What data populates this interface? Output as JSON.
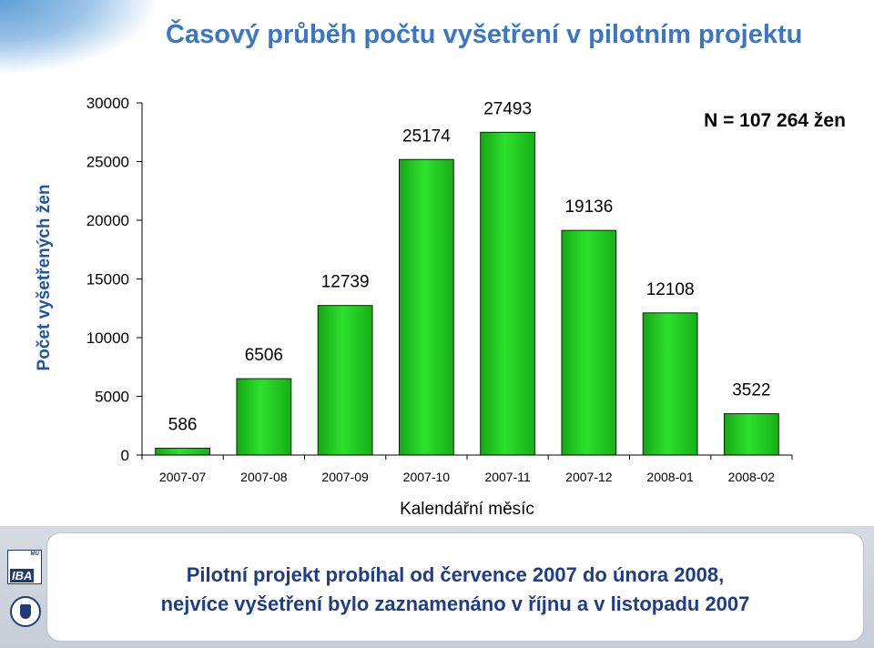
{
  "title": "Časový průběh počtu vyšetření v pilotním projektu",
  "chart_data": {
    "type": "bar",
    "categories": [
      "2007-07",
      "2007-08",
      "2007-09",
      "2007-10",
      "2007-11",
      "2007-12",
      "2008-01",
      "2008-02"
    ],
    "values": [
      586,
      6506,
      12739,
      25174,
      27493,
      19136,
      12108,
      3522
    ],
    "data_labels": [
      "586",
      "6506",
      "12739",
      "25174",
      "27493",
      "19136",
      "12108",
      "3522"
    ],
    "title": "",
    "xlabel": "Kalendářní měsíc",
    "ylabel": "Počet vyšetřených žen",
    "ylim": [
      0,
      30000
    ],
    "yticks": [
      0,
      5000,
      10000,
      15000,
      20000,
      25000,
      30000
    ],
    "ytick_labels": [
      "0",
      "5000",
      "10000",
      "15000",
      "20000",
      "25000",
      "30000"
    ],
    "grid": false,
    "legend": "none",
    "annotation": "N = 107 264 žen",
    "bar_color": "#22cc22"
  },
  "footer": {
    "line1": "Pilotní projekt probíhal od července 2007 do února 2008,",
    "line2": "nejvíce vyšetření bylo zaznamenáno v říjnu a v listopadu 2007"
  }
}
